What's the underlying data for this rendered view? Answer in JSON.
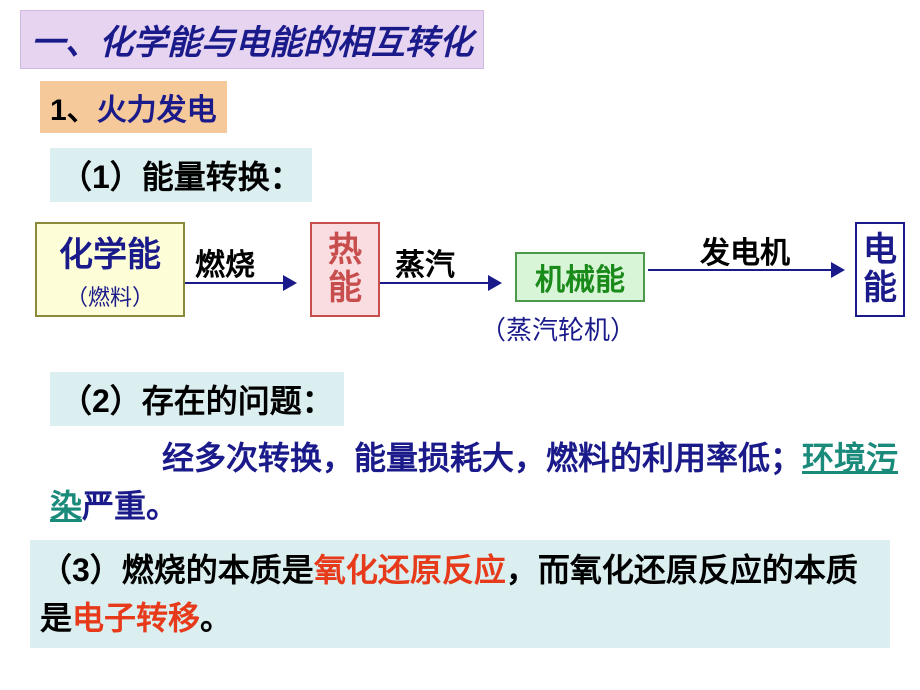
{
  "title": "一、化学能与电能的相互转化",
  "subtitle": {
    "number": "1、",
    "text": "火力发电"
  },
  "section1": {
    "label": "（1）能量转换：",
    "boxes": {
      "box1_main": "化学能",
      "box1_sub": "（燃料）",
      "box2": "热能",
      "box3": "机械能",
      "box3_sub": "（蒸汽轮机）",
      "box4": "电能"
    },
    "arrows": {
      "label1": "燃烧",
      "label2": "蒸汽",
      "label3": "发电机"
    },
    "colors": {
      "box1_bg": "#fdfdd8",
      "box1_border": "#8a8a3a",
      "box1_text": "#1a1a8a",
      "box2_bg": "#f9dde0",
      "box2_border": "#c84d4d",
      "box2_text": "#c84d4d",
      "box3_bg": "#d8f5d8",
      "box3_border": "#4a9a4a",
      "box3_text": "#1a8a1a",
      "box4_bg": "#ffffff",
      "box4_border": "#1a1a8a",
      "box4_text": "#1a1a8a",
      "arrow_color": "#1a1a8a"
    }
  },
  "section2": {
    "label": "（2）存在的问题：",
    "text_part1": "经多次转换，能量损耗大，燃料的利用率低；",
    "text_pollution": "环境污染",
    "text_part2": "严重。"
  },
  "section3": {
    "prefix": "（3）燃烧的本质是",
    "red1": "氧化还原反应",
    "mid": "，而氧化还原反应的本质是",
    "red2": "电子转移",
    "suffix": "。"
  },
  "colors": {
    "title_bg": "#e6d4f0",
    "subtitle_bg": "#f5c99a",
    "section_bg": "#dceff0",
    "blue_text": "#1a1a8a",
    "red_text": "#e63a1a",
    "green_text": "#1a8a7a"
  }
}
